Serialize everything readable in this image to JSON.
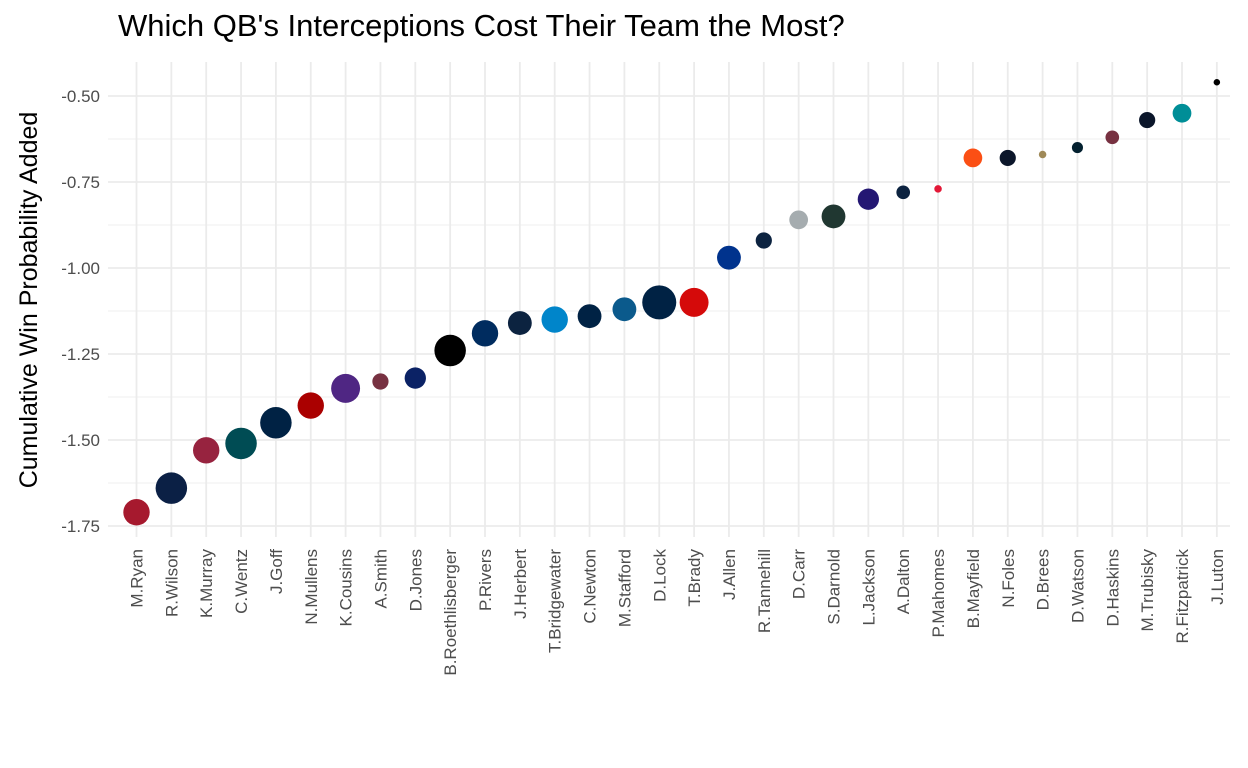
{
  "chart_data": {
    "type": "scatter",
    "title": "Which QB's Interceptions Cost Their Team the Most?",
    "xlabel": "",
    "ylabel": "Cumulative Win Probability Added",
    "ylim": [
      -1.77,
      -0.4
    ],
    "yticks": [
      -1.75,
      -1.5,
      -1.25,
      -1.0,
      -0.75,
      -0.5
    ],
    "ytick_labels": [
      "-1.75",
      "-1.50",
      "-1.25",
      "-1.00",
      "-0.75",
      "-0.50"
    ],
    "grid": true,
    "legend": "none",
    "points": [
      {
        "label": "M.Ryan",
        "value": -1.71,
        "size": 4,
        "color": "#a6192e"
      },
      {
        "label": "R.Wilson",
        "value": -1.64,
        "size": 5,
        "color": "#0b2045"
      },
      {
        "label": "K.Murray",
        "value": -1.53,
        "size": 4,
        "color": "#97233f"
      },
      {
        "label": "C.Wentz",
        "value": -1.51,
        "size": 5,
        "color": "#004c54"
      },
      {
        "label": "J.Goff",
        "value": -1.45,
        "size": 5,
        "color": "#002244"
      },
      {
        "label": "N.Mullens",
        "value": -1.4,
        "size": 4,
        "color": "#aa0000"
      },
      {
        "label": "K.Cousins",
        "value": -1.35,
        "size": 4.5,
        "color": "#4f2683"
      },
      {
        "label": "A.Smith",
        "value": -1.33,
        "size": 2,
        "color": "#773141"
      },
      {
        "label": "D.Jones",
        "value": -1.32,
        "size": 3,
        "color": "#0b2265"
      },
      {
        "label": "B.Roethlisberger",
        "value": -1.24,
        "size": 5,
        "color": "#000000"
      },
      {
        "label": "P.Rivers",
        "value": -1.19,
        "size": 4,
        "color": "#002c5f"
      },
      {
        "label": "J.Herbert",
        "value": -1.16,
        "size": 3.5,
        "color": "#0c2340"
      },
      {
        "label": "T.Bridgewater",
        "value": -1.15,
        "size": 4,
        "color": "#0085ca"
      },
      {
        "label": "C.Newton",
        "value": -1.14,
        "size": 3.5,
        "color": "#002244"
      },
      {
        "label": "M.Stafford",
        "value": -1.12,
        "size": 3.5,
        "color": "#0b5a8c"
      },
      {
        "label": "D.Lock",
        "value": -1.1,
        "size": 5.5,
        "color": "#002244"
      },
      {
        "label": "T.Brady",
        "value": -1.1,
        "size": 4.5,
        "color": "#d50a0a"
      },
      {
        "label": "J.Allen",
        "value": -0.97,
        "size": 3.5,
        "color": "#00338d"
      },
      {
        "label": "R.Tannehill",
        "value": -0.92,
        "size": 2,
        "color": "#0c2340"
      },
      {
        "label": "D.Carr",
        "value": -0.86,
        "size": 2.5,
        "color": "#a5acaf"
      },
      {
        "label": "S.Darnold",
        "value": -0.85,
        "size": 3.5,
        "color": "#203731"
      },
      {
        "label": "L.Jackson",
        "value": -0.8,
        "size": 3,
        "color": "#241773"
      },
      {
        "label": "A.Dalton",
        "value": -0.78,
        "size": 1.5,
        "color": "#0c2340"
      },
      {
        "label": "P.Mahomes",
        "value": -0.77,
        "size": 0.3,
        "color": "#e31837"
      },
      {
        "label": "B.Mayfield",
        "value": -0.68,
        "size": 2.5,
        "color": "#fb4f14"
      },
      {
        "label": "N.Foles",
        "value": -0.68,
        "size": 2,
        "color": "#0b162a"
      },
      {
        "label": "D.Brees",
        "value": -0.67,
        "size": 0.3,
        "color": "#9f8958"
      },
      {
        "label": "D.Watson",
        "value": -0.65,
        "size": 1,
        "color": "#03202f"
      },
      {
        "label": "D.Haskins",
        "value": -0.62,
        "size": 1.5,
        "color": "#773141"
      },
      {
        "label": "M.Trubisky",
        "value": -0.57,
        "size": 2,
        "color": "#0b162a"
      },
      {
        "label": "R.Fitzpatrick",
        "value": -0.55,
        "size": 2.5,
        "color": "#008e97"
      },
      {
        "label": "J.Luton",
        "value": -0.46,
        "size": 0.1,
        "color": "#000000"
      }
    ]
  }
}
